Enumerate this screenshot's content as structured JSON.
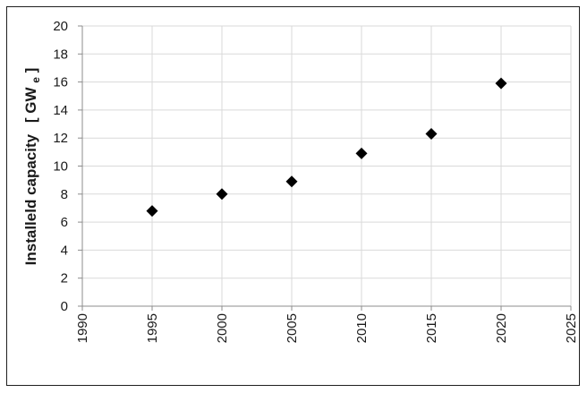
{
  "chart_data": {
    "type": "scatter",
    "title": "",
    "xlabel": "",
    "ylabel": "Installeld capacity",
    "ylabel_unit": {
      "open": "[",
      "main": "GW",
      "subscript": "e",
      "close": "]"
    },
    "xlim": [
      1990,
      2025
    ],
    "ylim": [
      0,
      20
    ],
    "xticks": [
      "1990",
      "1995",
      "2000",
      "2005",
      "2010",
      "2015",
      "2020",
      "2025"
    ],
    "yticks": [
      "0",
      "2",
      "4",
      "6",
      "8",
      "10",
      "12",
      "14",
      "16",
      "18",
      "20"
    ],
    "grid": true,
    "marker": "diamond",
    "series": [
      {
        "x": [
          1995,
          2000,
          2005,
          2010,
          2015,
          2020
        ],
        "y": [
          6.8,
          8.0,
          8.9,
          10.9,
          12.3,
          15.9
        ]
      }
    ],
    "colors": {
      "marker": "#000000",
      "grid": "#d9d9d9",
      "axis": "#8c8c8c",
      "frame": "#1f1f1f"
    }
  }
}
